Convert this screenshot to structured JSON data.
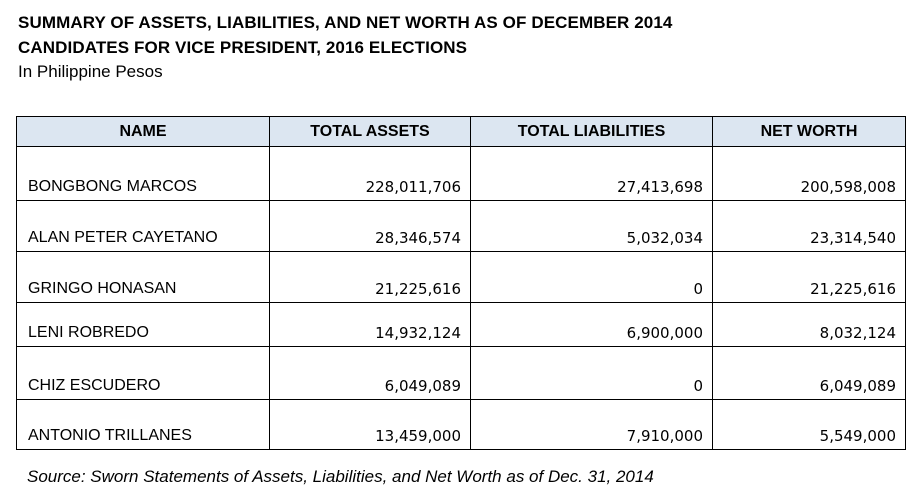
{
  "header": {
    "title_line1": "SUMMARY OF ASSETS, LIABILITIES, AND NET WORTH AS OF DECEMBER 2014",
    "title_line2": "CANDIDATES FOR VICE PRESIDENT, 2016 ELECTIONS",
    "subtitle": "In Philippine Pesos"
  },
  "table": {
    "columns": [
      "NAME",
      "TOTAL ASSETS",
      "TOTAL LIABILITIES",
      "NET WORTH"
    ],
    "rows": [
      {
        "name": "BONGBONG MARCOS",
        "assets": "228,011,706",
        "liabilities": "27,413,698",
        "net_worth": "200,598,008"
      },
      {
        "name": "ALAN PETER CAYETANO",
        "assets": "28,346,574",
        "liabilities": "5,032,034",
        "net_worth": "23,314,540"
      },
      {
        "name": "GRINGO HONASAN",
        "assets": "21,225,616",
        "liabilities": "0",
        "net_worth": "21,225,616"
      },
      {
        "name": "LENI ROBREDO",
        "assets": "14,932,124",
        "liabilities": "6,900,000",
        "net_worth": "8,032,124"
      },
      {
        "name": "CHIZ ESCUDERO",
        "assets": "6,049,089",
        "liabilities": "0",
        "net_worth": "6,049,089"
      },
      {
        "name": "ANTONIO TRILLANES",
        "assets": "13,459,000",
        "liabilities": "7,910,000",
        "net_worth": "5,549,000"
      }
    ]
  },
  "footer": {
    "source": "Source: Sworn Statements of Assets, Liabilities, and Net Worth as of Dec. 31, 2014"
  },
  "colors": {
    "header_fill": "#dce6f1",
    "border": "#000000",
    "text": "#000000"
  }
}
